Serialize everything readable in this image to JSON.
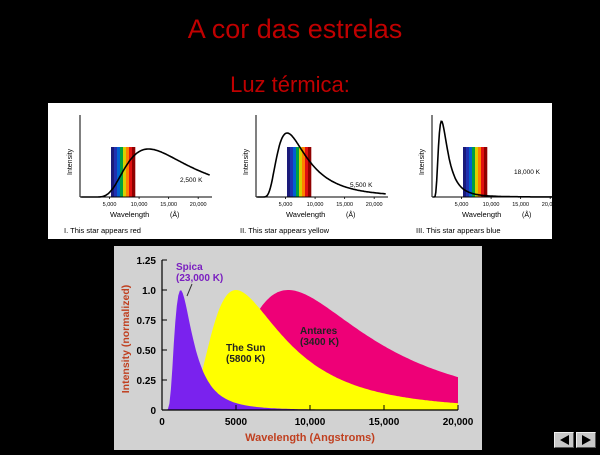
{
  "slide": {
    "title": "A cor das estrelas",
    "subtitle": "Luz térmica:"
  },
  "top_charts": {
    "ylabel": "Intensity",
    "xlabel": "Wavelength",
    "xunit": "(Å)",
    "x_ticks": [
      "5,000",
      "10,000",
      "15,000",
      "20,000"
    ],
    "panels": [
      {
        "temp_label": "2,500 K",
        "caption": "I.  This star appears red"
      },
      {
        "temp_label": "5,500 K",
        "caption": "II.  This star appears yellow"
      },
      {
        "temp_label": "18,000 K",
        "caption": "III.  This star appears blue"
      }
    ]
  },
  "chart_data": {
    "type": "area",
    "xlabel": "Wavelength (Angstroms)",
    "ylabel": "Intensity (normalized)",
    "xlim": [
      0,
      20000
    ],
    "ylim": [
      0,
      1.25
    ],
    "x_ticks": [
      0,
      5000,
      10000,
      15000,
      20000
    ],
    "x_tick_labels": [
      "0",
      "5000",
      "10,000",
      "15,000",
      "20,000"
    ],
    "y_ticks": [
      0,
      0.25,
      0.5,
      0.75,
      1.0,
      1.25
    ],
    "y_tick_labels": [
      "0",
      "0.25",
      "0.50",
      "0.75",
      "1.0",
      "1.25"
    ],
    "grid": false,
    "series": [
      {
        "label_lines": [
          "Antares",
          "(3400 K)"
        ],
        "temperature_k": 3400,
        "color": "#ee0077"
      },
      {
        "label_lines": [
          "The Sun",
          "(5800 K)"
        ],
        "temperature_k": 5800,
        "color": "#ffff00"
      },
      {
        "label_lines": [
          "Spica",
          "(23,000 K)"
        ],
        "temperature_k": 23000,
        "color": "#7a22ee"
      }
    ]
  },
  "colors": {
    "title": "#c00000",
    "axis_text": "#c04020",
    "background": "#000000"
  },
  "nav": {
    "back_icon": "back-arrow-icon",
    "forward_icon": "forward-arrow-icon"
  }
}
